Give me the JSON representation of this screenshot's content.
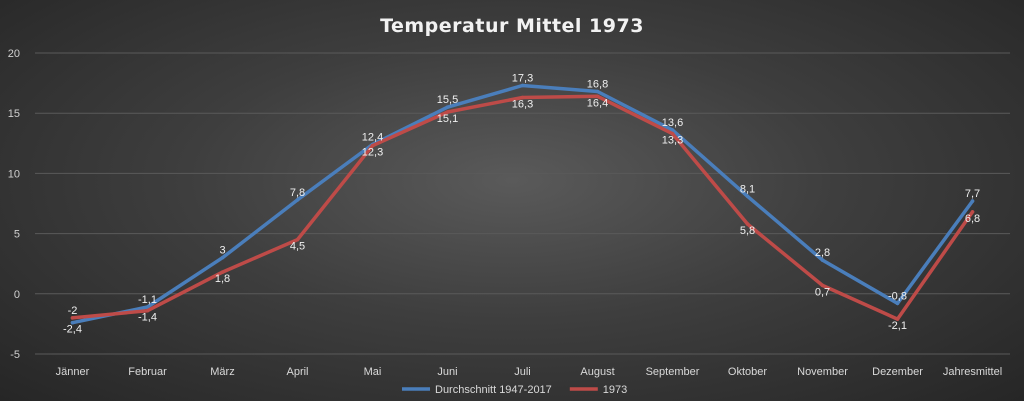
{
  "chart_data": {
    "type": "line",
    "title": "Temperatur Mittel 1973",
    "categories": [
      "Jänner",
      "Februar",
      "März",
      "April",
      "Mai",
      "Juni",
      "Juli",
      "August",
      "September",
      "Oktober",
      "November",
      "Dezember",
      "Jahresmittel"
    ],
    "ylim": [
      -5,
      20
    ],
    "yticks": [
      -5,
      0,
      5,
      10,
      15,
      20
    ],
    "grid": true,
    "legend_position": "bottom",
    "series": [
      {
        "name": "Durchschnitt 1947-2017",
        "color": "#4a7ebb",
        "values": [
          -2.4,
          -1.1,
          3,
          7.8,
          12.4,
          15.5,
          17.3,
          16.8,
          13.6,
          8.1,
          2.8,
          -0.8,
          7.7
        ],
        "labels": [
          "-2,4",
          "-1,1",
          "3",
          "7,8",
          "12,4",
          "15,5",
          "17,3",
          "16,8",
          "13,6",
          "8,1",
          "2,8",
          "-0,8",
          "7,7"
        ]
      },
      {
        "name": "1973",
        "color": "#be4b48",
        "values": [
          -2,
          -1.4,
          1.8,
          4.5,
          12.3,
          15.1,
          16.3,
          16.4,
          13.3,
          5.8,
          0.7,
          -2.1,
          6.8
        ],
        "labels": [
          "-2",
          "-1,4",
          "1,8",
          "4,5",
          "12,3",
          "15,1",
          "16,3",
          "16,4",
          "13,3",
          "5,8",
          "0,7",
          "-2,1",
          "6,8"
        ]
      }
    ]
  }
}
